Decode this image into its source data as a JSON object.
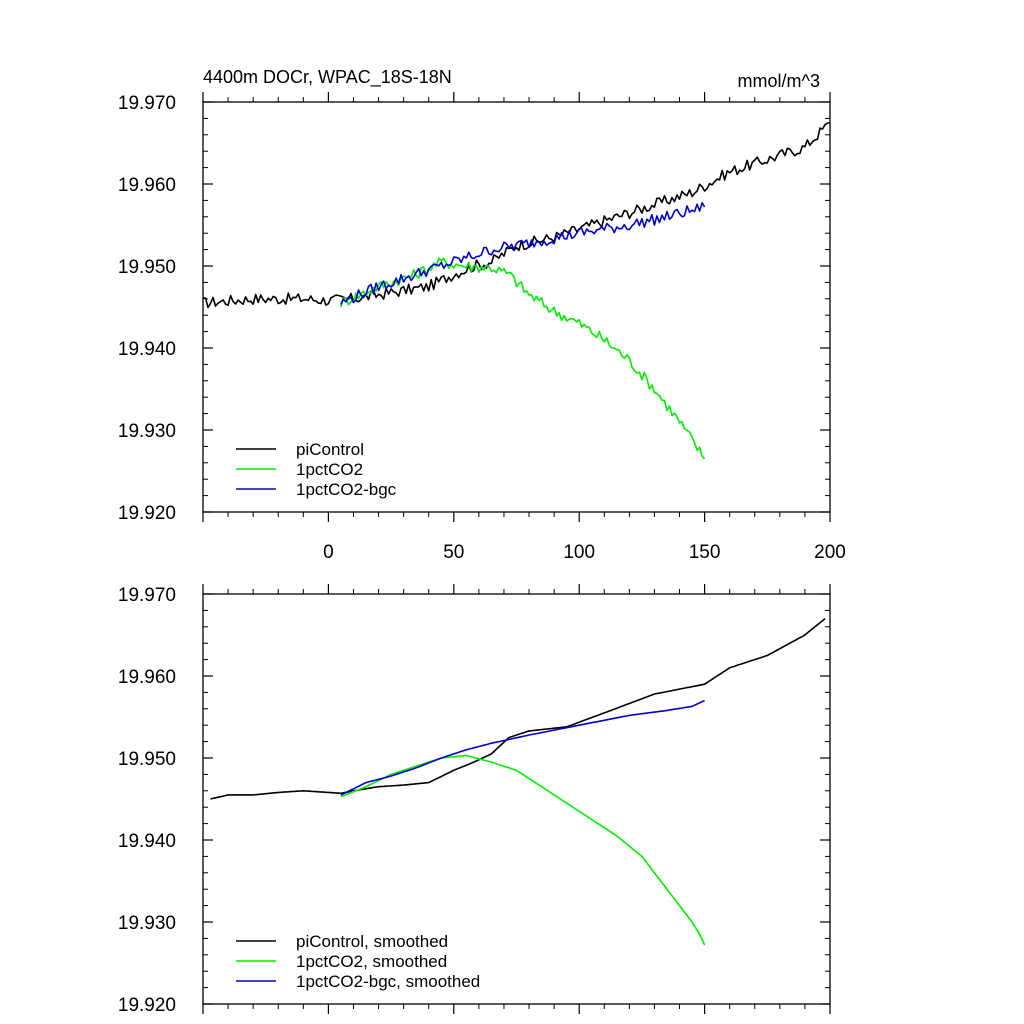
{
  "title_left": "4400m DOCr, WPAC_18S-18N",
  "title_right": "mmol/m^3",
  "colors": {
    "piControl": "#000000",
    "1pctCO2": "#00ee00",
    "1pctCO2-bgc": "#0000cc"
  },
  "chart_data": [
    {
      "type": "line",
      "title": "4400m DOCr, WPAC_18S-18N",
      "units": "mmol/m^3",
      "xlim": [
        -50,
        200
      ],
      "ylim": [
        19.92,
        19.97
      ],
      "x_ticks": [
        0,
        50,
        100,
        150,
        200
      ],
      "x_tick_labels": [
        "0",
        "50",
        "100",
        "150",
        "200"
      ],
      "y_ticks": [
        19.92,
        19.93,
        19.94,
        19.95,
        19.96,
        19.97
      ],
      "y_tick_labels": [
        "19.920",
        "19.930",
        "19.940",
        "19.950",
        "19.960",
        "19.970"
      ],
      "grid": false,
      "legend_position": "bottom-left",
      "series": [
        {
          "name": "piControl",
          "color": "#000000",
          "noisy": true,
          "points": [
            [
              -50,
              19.9455
            ],
            [
              -30,
              19.946
            ],
            [
              -10,
              19.946
            ],
            [
              0,
              19.9458
            ],
            [
              10,
              19.946
            ],
            [
              20,
              19.9465
            ],
            [
              30,
              19.947
            ],
            [
              40,
              19.9475
            ],
            [
              50,
              19.949
            ],
            [
              58,
              19.95
            ],
            [
              65,
              19.9505
            ],
            [
              75,
              19.9525
            ],
            [
              90,
              19.9535
            ],
            [
              110,
              19.9555
            ],
            [
              130,
              19.9575
            ],
            [
              145,
              19.959
            ],
            [
              150,
              19.9598
            ],
            [
              160,
              19.9615
            ],
            [
              180,
              19.9635
            ],
            [
              190,
              19.9645
            ],
            [
              200,
              19.9675
            ]
          ]
        },
        {
          "name": "1pctCO2",
          "color": "#00ee00",
          "noisy": true,
          "points": [
            [
              5,
              19.9455
            ],
            [
              20,
              19.9475
            ],
            [
              35,
              19.949
            ],
            [
              45,
              19.9505
            ],
            [
              55,
              19.95
            ],
            [
              65,
              19.9498
            ],
            [
              72,
              19.949
            ],
            [
              80,
              19.9465
            ],
            [
              90,
              19.9445
            ],
            [
              100,
              19.943
            ],
            [
              110,
              19.941
            ],
            [
              120,
              19.9385
            ],
            [
              130,
              19.935
            ],
            [
              140,
              19.931
            ],
            [
              150,
              19.9265
            ]
          ]
        },
        {
          "name": "1pctCO2-bgc",
          "color": "#0000cc",
          "noisy": true,
          "points": [
            [
              5,
              19.9455
            ],
            [
              20,
              19.9475
            ],
            [
              35,
              19.949
            ],
            [
              50,
              19.9505
            ],
            [
              65,
              19.952
            ],
            [
              80,
              19.9528
            ],
            [
              100,
              19.954
            ],
            [
              120,
              19.955
            ],
            [
              135,
              19.956
            ],
            [
              150,
              19.9572
            ]
          ]
        }
      ]
    },
    {
      "type": "line",
      "title": "",
      "xlim": [
        -50,
        200
      ],
      "ylim": [
        19.92,
        19.97
      ],
      "x_ticks": [
        0,
        50,
        100,
        150,
        200
      ],
      "x_tick_labels": [],
      "y_ticks": [
        19.92,
        19.93,
        19.94,
        19.95,
        19.96,
        19.97
      ],
      "y_tick_labels": [
        "19.920",
        "19.930",
        "19.940",
        "19.950",
        "19.960",
        "19.970"
      ],
      "grid": false,
      "legend_position": "bottom-left",
      "series": [
        {
          "name": "piControl, smoothed",
          "color": "#000000",
          "noisy": false,
          "points": [
            [
              -47,
              19.945
            ],
            [
              -40,
              19.9455
            ],
            [
              -30,
              19.9455
            ],
            [
              -20,
              19.9458
            ],
            [
              -10,
              19.946
            ],
            [
              0,
              19.9458
            ],
            [
              5,
              19.9457
            ],
            [
              10,
              19.946
            ],
            [
              20,
              19.9465
            ],
            [
              30,
              19.9467
            ],
            [
              40,
              19.947
            ],
            [
              50,
              19.9485
            ],
            [
              58,
              19.9495
            ],
            [
              65,
              19.9505
            ],
            [
              72,
              19.9525
            ],
            [
              80,
              19.9533
            ],
            [
              95,
              19.9538
            ],
            [
              110,
              19.9555
            ],
            [
              130,
              19.9578
            ],
            [
              150,
              19.959
            ],
            [
              160,
              19.961
            ],
            [
              175,
              19.9625
            ],
            [
              190,
              19.965
            ],
            [
              198,
              19.967
            ]
          ]
        },
        {
          "name": "1pctCO2, smoothed",
          "color": "#00ee00",
          "noisy": false,
          "points": [
            [
              5,
              19.9453
            ],
            [
              15,
              19.9465
            ],
            [
              25,
              19.948
            ],
            [
              35,
              19.949
            ],
            [
              45,
              19.95
            ],
            [
              55,
              19.9503
            ],
            [
              65,
              19.9495
            ],
            [
              75,
              19.9485
            ],
            [
              85,
              19.9465
            ],
            [
              95,
              19.9445
            ],
            [
              105,
              19.9425
            ],
            [
              115,
              19.9405
            ],
            [
              125,
              19.938
            ],
            [
              135,
              19.934
            ],
            [
              145,
              19.93
            ],
            [
              148,
              19.9285
            ],
            [
              150,
              19.9272
            ]
          ]
        },
        {
          "name": "1pctCO2-bgc, smoothed",
          "color": "#0000cc",
          "noisy": false,
          "points": [
            [
              5,
              19.9455
            ],
            [
              15,
              19.947
            ],
            [
              25,
              19.9478
            ],
            [
              35,
              19.9488
            ],
            [
              45,
              19.95
            ],
            [
              55,
              19.951
            ],
            [
              65,
              19.9518
            ],
            [
              80,
              19.9528
            ],
            [
              100,
              19.954
            ],
            [
              120,
              19.9552
            ],
            [
              135,
              19.9558
            ],
            [
              145,
              19.9563
            ],
            [
              150,
              19.957
            ]
          ]
        }
      ]
    }
  ]
}
